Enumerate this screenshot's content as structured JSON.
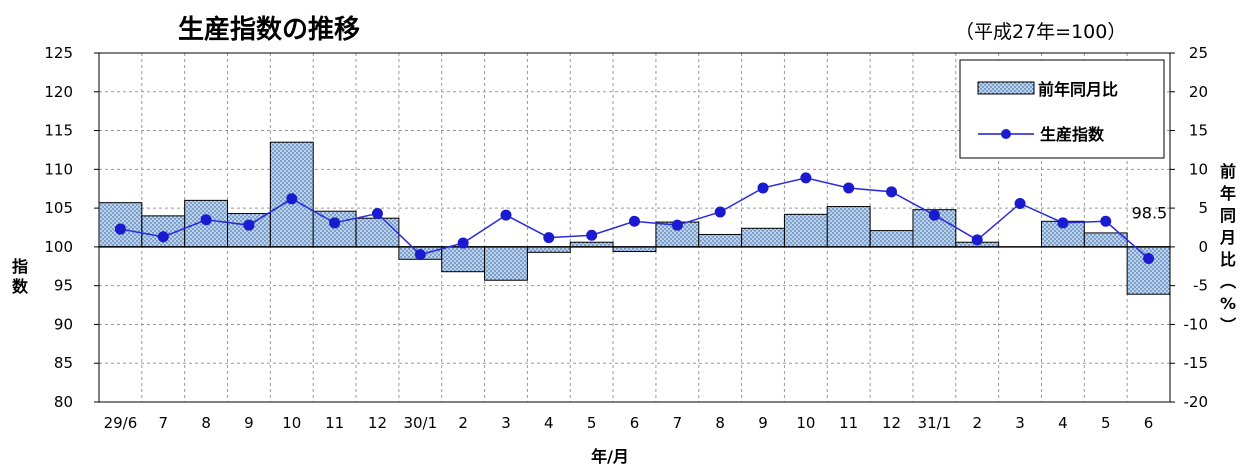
{
  "chart_data": {
    "type": "bar+line",
    "title": "生産指数の推移",
    "subtitle": "（平成27年=100）",
    "categories": [
      "29/6",
      "7",
      "8",
      "9",
      "10",
      "11",
      "12",
      "30/1",
      "2",
      "3",
      "4",
      "5",
      "6",
      "7",
      "8",
      "9",
      "10",
      "11",
      "12",
      "31/1",
      "2",
      "3",
      "4",
      "5",
      "6"
    ],
    "xlabel": "年/月",
    "ylabel_left": "指数",
    "ylabel_right": "前年同月比（%）",
    "ylim_left": [
      80,
      125
    ],
    "ylim_right": [
      -20,
      25
    ],
    "yticks_left": [
      "125",
      "120",
      "115",
      "110",
      "105",
      "100",
      "95",
      "90",
      "85",
      "80"
    ],
    "yticks_right": [
      "25",
      "20",
      "15",
      "10",
      "5",
      "0",
      "-5",
      "-10",
      "-15",
      "-20"
    ],
    "grid": true,
    "legend_position": "top-right",
    "series": [
      {
        "name": "前年同月比",
        "type": "bar",
        "axis": "right",
        "color": "#a9c9ee",
        "values": [
          5.7,
          4.0,
          6.0,
          4.3,
          13.5,
          4.6,
          3.7,
          -1.6,
          -3.2,
          -4.3,
          -0.7,
          0.6,
          -0.6,
          3.2,
          1.6,
          2.4,
          4.2,
          5.2,
          2.1,
          4.8,
          0.6,
          0.0,
          3.3,
          1.8,
          -6.1
        ]
      },
      {
        "name": "生産指数",
        "type": "line",
        "axis": "left",
        "color": "#1a1ad0",
        "values": [
          102.3,
          101.3,
          103.5,
          102.8,
          106.2,
          103.1,
          104.3,
          99.0,
          100.5,
          104.1,
          101.2,
          101.5,
          103.3,
          102.8,
          104.5,
          107.6,
          108.9,
          107.6,
          107.1,
          104.1,
          100.9,
          105.6,
          103.1,
          103.3,
          98.5
        ]
      }
    ],
    "annotations": [
      {
        "text": "98.5",
        "category": "6",
        "series": "生産指数"
      }
    ]
  }
}
